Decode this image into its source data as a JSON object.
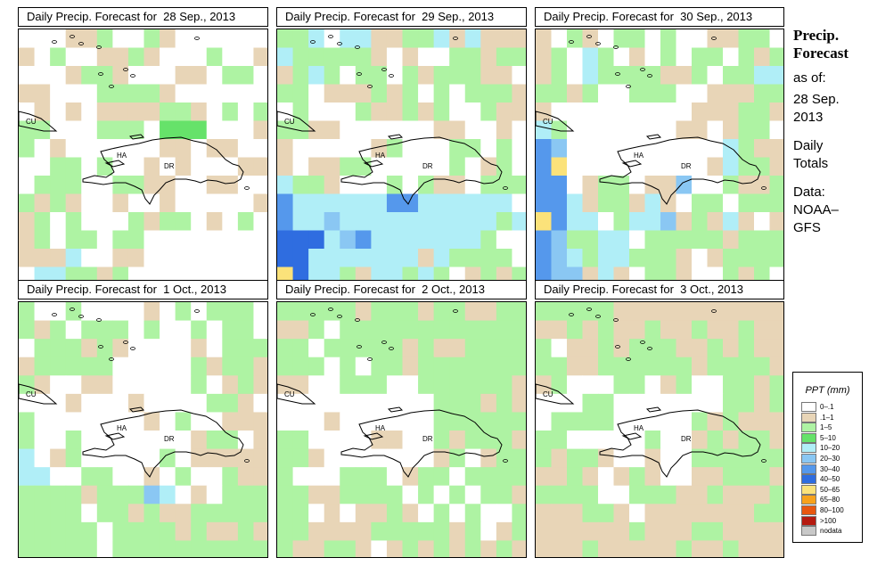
{
  "panels": [
    {
      "title": "Daily Precip. Forecast for  28 Sep., 2013"
    },
    {
      "title": "Daily Precip. Forecast for  29 Sep., 2013"
    },
    {
      "title": "Daily Precip. Forecast for  30 Sep., 2013"
    },
    {
      "title": "Daily Precip. Forecast for  1 Oct., 2013"
    },
    {
      "title": "Daily Precip. Forecast for  2 Oct., 2013"
    },
    {
      "title": "Daily Precip. Forecast for  3 Oct., 2013"
    }
  ],
  "map_labels": {
    "cuba": "CU",
    "haiti": "HA",
    "dominican_republic": "DR"
  },
  "side": {
    "title_line1": "Precip.",
    "title_line2": "Forecast",
    "asof": "as of:",
    "date_line1": "28 Sep.",
    "date_line2": "2013",
    "totals_line1": "Daily",
    "totals_line2": "Totals",
    "source_line1": "Data:",
    "source_line2": "NOAA–",
    "source_line3": "GFS"
  },
  "legend": {
    "title": "PPT (mm)",
    "classes": [
      {
        "label": "0–.1",
        "color": "#ffffff"
      },
      {
        "label": ".1–1",
        "color": "#e8d5b7"
      },
      {
        "label": "1–5",
        "color": "#aef3a3"
      },
      {
        "label": "5–10",
        "color": "#66e26a"
      },
      {
        "label": "10–20",
        "color": "#b0eef7"
      },
      {
        "label": "20–30",
        "color": "#8ac7f3"
      },
      {
        "label": "30–40",
        "color": "#5598ec"
      },
      {
        "label": "40–50",
        "color": "#2f6de0"
      },
      {
        "label": "50–65",
        "color": "#fbe27a"
      },
      {
        "label": "65–80",
        "color": "#f7a21c"
      },
      {
        "label": "80–100",
        "color": "#e85710"
      },
      {
        "label": ">100",
        "color": "#b51a10"
      },
      {
        "label": "nodata",
        "color": "#c8c8c8"
      }
    ]
  },
  "grids": [
    [
      "0001120021000000",
      "1020011210002001",
      "0001221000110220",
      "1100022221000000",
      "0101011112210202",
      "2200022203330001",
      "2010000001101100",
      "0022020010100011",
      "0222002211001100",
      "2121001001000001",
      "1202000212201020",
      "1202202200000000",
      "1114001100000000",
      "0442212000000000"
    ],
    [
      "2240441122414111",
      "4222221010022122",
      "1242022021222110",
      "2201112120202221",
      "0200021121200211",
      "2211000000110010",
      "1000001200022020",
      "1011220000020120",
      "4221000202110222",
      "6444444664444440",
      "6445444444444424",
      "7774564444444200",
      "7744444441422220",
      "8744214424201212"
    ],
    [
      "1021022020011220",
      "1204201020220212",
      "1204222211202244",
      "2212002220011122",
      "1000000000111221",
      "4200000001101220",
      "6500000000004211",
      "6800000000014221",
      "6601220115002112",
      "6641221410220222",
      "8644024451214101",
      "6522440222221222",
      "6542442221012222",
      "6551410221002120"
    ],
    [
      "2002000010202220",
      "2120222020020220",
      "0222121000010222",
      "1222220000021221",
      "2100110000020121",
      "0001000100002210",
      "2000000010200111",
      "2002000000012201",
      "4012000002011111",
      "4400220010200211",
      "2222122254010222",
      "2222022121122222",
      "2222202222121121",
      "2222202222222222"
    ],
    [
      "2222212221221122",
      "1120222222222222",
      "2202222212112222",
      "2220202212222222",
      "1100222002222221",
      "0000000000222121",
      "0001000000222222",
      "2200001100212221",
      "2210000000120122",
      "2000222012202222",
      "2211222202020221",
      "2201011210202002",
      "2211112222212012",
      "2112210121212121"
    ],
    [
      "2222211111111111",
      "1121211211211211",
      "2011212221121211",
      "2211222222122221",
      "1200022012002212",
      "0002200000002212",
      "0222200000212111",
      "2200000200121221",
      "2122100100222222",
      "1121012100112221",
      "2222002221121112",
      "1112210111111122",
      "1111112111221111",
      "1112111112112111"
    ]
  ]
}
